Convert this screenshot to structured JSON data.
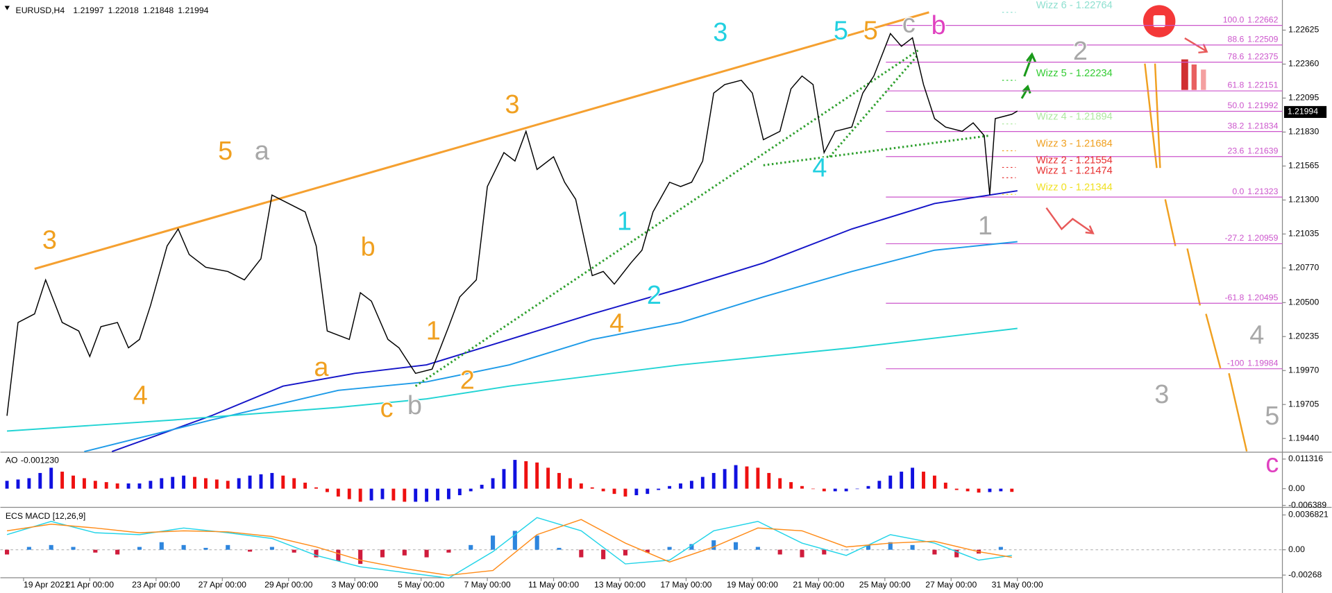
{
  "chart_data": [
    {
      "type": "line",
      "title": "EURUSD,H4",
      "quote": [
        1.21997,
        1.22018,
        1.21848,
        1.21994
      ],
      "color": "#000000",
      "x": [
        0,
        2,
        5,
        7,
        10,
        13,
        15,
        17,
        20,
        22,
        24,
        26,
        29,
        31,
        33,
        36,
        40,
        43,
        46,
        48,
        51,
        54,
        56,
        58,
        60,
        62,
        64,
        66,
        69,
        71,
        74,
        77,
        80,
        82,
        85,
        87,
        90,
        92,
        94,
        96,
        99,
        101,
        103,
        106,
        108,
        110,
        113,
        115,
        117,
        120,
        122,
        124,
        126,
        128,
        130,
        133,
        135,
        137,
        140,
        142,
        144,
        146,
        148,
        150,
        153,
        155,
        157,
        160,
        162,
        164,
        166,
        168,
        170,
        173,
        175,
        177,
        178,
        179,
        182,
        183
      ],
      "values": [
        1.19617,
        1.20345,
        1.20412,
        1.20677,
        1.20345,
        1.20279,
        1.2008,
        1.20312,
        1.20345,
        1.20147,
        1.20213,
        1.20478,
        1.20942,
        1.21074,
        1.20875,
        1.20776,
        1.20743,
        1.20677,
        1.20842,
        1.21339,
        1.21273,
        1.21207,
        1.20942,
        1.20279,
        1.20246,
        1.20213,
        1.20577,
        1.20511,
        1.20213,
        1.20147,
        1.19948,
        1.19981,
        1.20312,
        1.20544,
        1.20677,
        1.21405,
        1.2167,
        1.21604,
        1.21836,
        1.21538,
        1.21637,
        1.21439,
        1.21306,
        1.2071,
        1.20743,
        1.20644,
        1.20809,
        1.20909,
        1.21207,
        1.21439,
        1.21405,
        1.21439,
        1.21604,
        1.22134,
        1.222,
        1.22234,
        1.22134,
        1.2177,
        1.21836,
        1.22167,
        1.22267,
        1.222,
        1.2167,
        1.21836,
        1.21869,
        1.22134,
        1.22267,
        1.22598,
        1.22499,
        1.22565,
        1.222,
        1.21935,
        1.21869,
        1.21836,
        1.21902,
        1.21803,
        1.21339,
        1.21935,
        1.21969,
        1.21994
      ],
      "moving_averages": [
        {
          "color": "#1515c8",
          "x": [
            19,
            37,
            50,
            63,
            76,
            91,
            106,
            122,
            137,
            153,
            168,
            183
          ],
          "values": [
            1.19338,
            1.19617,
            1.19849,
            1.19948,
            1.20014,
            1.20213,
            1.20412,
            1.2061,
            1.20809,
            1.21074,
            1.21273,
            1.21372
          ]
        },
        {
          "color": "#1e9be8",
          "x": [
            14,
            37,
            60,
            76,
            91,
            106,
            122,
            137,
            153,
            168,
            183
          ],
          "values": [
            1.19338,
            1.19584,
            1.19816,
            1.19882,
            1.20014,
            1.20213,
            1.20345,
            1.20544,
            1.20743,
            1.20909,
            1.20975
          ]
        },
        {
          "color": "#22d4d4",
          "x": [
            0,
            30,
            60,
            76,
            91,
            122,
            153,
            183
          ],
          "values": [
            1.19498,
            1.19584,
            1.19683,
            1.19749,
            1.19849,
            1.20014,
            1.20147,
            1.20299
          ]
        }
      ],
      "trendline": {
        "color": "#f5a030",
        "x": [
          5,
          167
        ],
        "values": [
          1.20763,
          1.22764
        ]
      },
      "dotted_lines": [
        {
          "color": "#2ea02e",
          "x": [
            74,
            165
          ],
          "values": [
            1.19849,
            1.22466
          ]
        },
        {
          "color": "#2ea02e",
          "x": [
            137,
            178
          ],
          "values": [
            1.21571,
            1.21803
          ]
        },
        {
          "color": "#2ea02e",
          "x": [
            149,
            165
          ],
          "values": [
            1.21637,
            1.22432
          ]
        }
      ],
      "xlim": [
        -1.2,
        231
      ],
      "ylim": [
        1.1934,
        1.2286
      ],
      "yticks": [
        1.22625,
        {
          "value": 1.2236,
          "label": "1.22360"
        },
        1.22095,
        {
          "value": 1.2183,
          "label": "1.21830"
        },
        1.21565,
        {
          "value": 1.213,
          "label": "1.21300"
        },
        1.21035,
        {
          "value": 1.2077,
          "label": "1.20770"
        },
        {
          "value": 1.205,
          "label": "1.20500"
        },
        1.20235,
        {
          "value": 1.1997,
          "label": "1.19970"
        },
        1.19705,
        {
          "value": 1.1944,
          "label": "1.19440"
        }
      ],
      "xticks": [
        {
          "value": 3,
          "label": "19 Apr 2021"
        },
        {
          "value": 15,
          "label": "21 Apr 00:00"
        },
        {
          "value": 27,
          "label": "23 Apr 00:00"
        },
        {
          "value": 39,
          "label": "27 Apr 00:00"
        },
        {
          "value": 51,
          "label": "29 Apr 00:00"
        },
        {
          "value": 63,
          "label": "3 May 00:00"
        },
        {
          "value": 75,
          "label": "5 May 00:00"
        },
        {
          "value": 87,
          "label": "7 May 00:00"
        },
        {
          "value": 99,
          "label": "11 May 00:00"
        },
        {
          "value": 111,
          "label": "13 May 00:00"
        },
        {
          "value": 123,
          "label": "17 May 00:00"
        },
        {
          "value": 135,
          "label": "19 May 00:00"
        },
        {
          "value": 147,
          "label": "21 May 00:00"
        },
        {
          "value": 159,
          "label": "25 May 00:00"
        },
        {
          "value": 171,
          "label": "27 May 00:00"
        },
        {
          "value": 183,
          "label": "31 May 00:00"
        }
      ],
      "fib_levels": [
        {
          "ratio": "100.0",
          "value": 1.22662
        },
        {
          "ratio": "88.6",
          "value": 1.22509
        },
        {
          "ratio": "78.6",
          "value": 1.22375
        },
        {
          "ratio": "61.8",
          "value": 1.22151
        },
        {
          "ratio": "50.0",
          "value": 1.21992
        },
        {
          "ratio": "38.2",
          "value": 1.21834
        },
        {
          "ratio": "23.6",
          "value": 1.21639
        },
        {
          "ratio": "0.0",
          "value": 1.21323
        },
        {
          "ratio": "-27.2",
          "value": 1.20959
        },
        {
          "ratio": "-61.8",
          "value": 1.20495
        },
        {
          "ratio": "-100",
          "value": 1.19984
        }
      ],
      "fib_color": "#cc55cc",
      "wizz_levels": [
        {
          "label": "Wizz 6 - 1.22764",
          "value": 1.22764,
          "color": "#8fe0d0"
        },
        {
          "label": "Wizz 5 - 1.22234",
          "value": 1.22234,
          "color": "#33cc33"
        },
        {
          "label": "Wizz 4 - 1.21894",
          "value": 1.21894,
          "color": "#aee8a0"
        },
        {
          "label": "Wizz 3 - 1.21684",
          "value": 1.21684,
          "color": "#f0a020"
        },
        {
          "label": "Wizz 2 - 1.21554",
          "value": 1.21554,
          "color": "#e83030"
        },
        {
          "label": "Wizz 1 - 1.21474",
          "value": 1.21474,
          "color": "#e83030"
        },
        {
          "label": "Wizz 0 - 1.21344",
          "value": 1.21344,
          "color": "#f0e020"
        }
      ],
      "wave_labels": [
        {
          "text": "3",
          "color": "#f0a020"
        },
        {
          "text": "4",
          "color": "#f0a020"
        },
        {
          "text": "5",
          "color": "#f0a020"
        },
        {
          "text": "a",
          "color": "#a8a8a8"
        },
        {
          "text": "a",
          "color": "#f0a020"
        },
        {
          "text": "b",
          "color": "#f0a020"
        },
        {
          "text": "1",
          "color": "#f0a020"
        },
        {
          "text": "2",
          "color": "#f0a020"
        },
        {
          "text": "c",
          "color": "#f0a020"
        },
        {
          "text": "b",
          "color": "#a8a8a8"
        },
        {
          "text": "3",
          "color": "#f0a020"
        },
        {
          "text": "4",
          "color": "#f0a020"
        },
        {
          "text": "1",
          "color": "#22d0e0"
        },
        {
          "text": "2",
          "color": "#22d0e0"
        },
        {
          "text": "3",
          "color": "#22d0e0"
        },
        {
          "text": "5",
          "color": "#22d0e0"
        },
        {
          "text": "5",
          "color": "#f0a020"
        },
        {
          "text": "c",
          "color": "#a8a8a8"
        },
        {
          "text": "b",
          "color": "#e040c0"
        },
        {
          "text": "4",
          "color": "#22d0e0"
        },
        {
          "text": "1",
          "color": "#a8a8a8"
        },
        {
          "text": "2",
          "color": "#a8a8a8"
        },
        {
          "text": "4",
          "color": "#a8a8a8"
        },
        {
          "text": "3",
          "color": "#a8a8a8"
        },
        {
          "text": "5",
          "color": "#a8a8a8"
        },
        {
          "text": "c",
          "color": "#e040c0"
        }
      ]
    },
    {
      "type": "bar",
      "title": "AO",
      "current": -0.00123,
      "current_label": "-0.001230",
      "colors": {
        "up": "#1010e0",
        "down": "#ee1010"
      },
      "x": [
        0,
        2,
        4,
        6,
        8,
        10,
        12,
        14,
        16,
        18,
        20,
        22,
        24,
        26,
        28,
        30,
        32,
        34,
        36,
        38,
        40,
        42,
        44,
        46,
        48,
        50,
        52,
        54,
        56,
        58,
        60,
        62,
        64,
        66,
        68,
        70,
        72,
        74,
        76,
        78,
        80,
        82,
        84,
        86,
        88,
        90,
        92,
        94,
        96,
        98,
        100,
        102,
        104,
        106,
        108,
        110,
        112,
        114,
        116,
        118,
        120,
        122,
        124,
        126,
        128,
        130,
        132,
        134,
        136,
        138,
        140,
        142,
        144,
        146,
        148,
        150,
        152,
        154,
        156,
        158,
        160,
        162,
        164,
        166,
        168,
        170,
        172,
        174,
        176,
        178,
        180,
        182
      ],
      "values": [
        0.003,
        0.0035,
        0.004,
        0.006,
        0.008,
        0.0065,
        0.005,
        0.004,
        0.003,
        0.0025,
        0.002,
        0.002,
        0.002,
        0.003,
        0.004,
        0.0045,
        0.005,
        0.0045,
        0.004,
        0.0035,
        0.003,
        0.004,
        0.005,
        0.0055,
        0.006,
        0.005,
        0.004,
        0.0023,
        0.0005,
        -0.0013,
        -0.003,
        -0.004,
        -0.005,
        -0.0045,
        -0.004,
        -0.0045,
        -0.005,
        -0.005,
        -0.005,
        -0.0045,
        -0.004,
        -0.0025,
        -0.001,
        0.0015,
        0.004,
        0.0075,
        0.011,
        0.0105,
        0.01,
        0.008,
        0.006,
        0.004,
        0.002,
        0.0005,
        -0.001,
        -0.002,
        -0.003,
        -0.0025,
        -0.002,
        -0.0005,
        0.001,
        0.002,
        0.003,
        0.0045,
        0.006,
        0.0075,
        0.009,
        0.0085,
        0.008,
        0.006,
        0.004,
        0.0025,
        0.001,
        0,
        -0.001,
        -0.001,
        -0.001,
        0,
        0.001,
        0.003,
        0.005,
        0.0065,
        0.008,
        0.0065,
        0.005,
        0.0023,
        -0.0005,
        -0.001,
        -0.0015,
        -0.0013,
        -0.001,
        -0.00123
      ],
      "ylim": [
        -0.0068,
        0.0133
      ],
      "yticks": [
        0.011316,
        {
          "value": 0,
          "label": "0.00"
        },
        -0.006389
      ]
    },
    {
      "type": "macd",
      "title": "ECS MACD [12,26,9]",
      "histogram": {
        "colors": {
          "positive": "#2e86de",
          "negative": "#d01c3c"
        },
        "x": [
          0,
          4,
          8,
          12,
          16,
          20,
          24,
          28,
          32,
          36,
          40,
          44,
          48,
          52,
          56,
          60,
          64,
          68,
          72,
          76,
          80,
          84,
          88,
          92,
          96,
          100,
          104,
          108,
          112,
          116,
          120,
          124,
          128,
          132,
          136,
          140,
          144,
          148,
          152,
          156,
          160,
          164,
          168,
          172,
          176,
          180
        ],
        "values": [
          -0.0005,
          0.0003,
          0.0005,
          0.0003,
          -0.0003,
          -0.0005,
          0.0003,
          0.0008,
          0.0005,
          0.0002,
          0.0005,
          -0.0002,
          0.0003,
          -0.0003,
          -0.0008,
          -0.0012,
          -0.0015,
          -0.0008,
          -0.0006,
          -0.0008,
          -0.0003,
          0.0005,
          0.0015,
          0.002,
          0.0015,
          0.0002,
          -0.0008,
          -0.001,
          -0.0006,
          -0.0003,
          0.0003,
          0.0006,
          0.001,
          0.0008,
          0.0003,
          -0.0005,
          -0.0008,
          -0.0005,
          0,
          0.0005,
          0.0008,
          0.0005,
          -0.0005,
          -0.0008,
          -0.0004,
          0.0003
        ]
      },
      "series": [
        {
          "color": "#22d4e8",
          "x": [
            0,
            8,
            16,
            24,
            32,
            40,
            48,
            56,
            64,
            72,
            80,
            88,
            96,
            104,
            112,
            120,
            128,
            136,
            144,
            152,
            160,
            168,
            176,
            182
          ],
          "values": [
            0.0016,
            0.003,
            0.0018,
            0.0016,
            0.0023,
            0.0018,
            0.0012,
            -0.0006,
            -0.0018,
            -0.0024,
            -0.003,
            -0.0002,
            0.0034,
            0.002,
            -0.0015,
            -0.0011,
            0.002,
            0.003,
            0.0007,
            -0.0006,
            0.0016,
            0.0007,
            -0.0011,
            -0.0006
          ]
        },
        {
          "color": "#ff8c1a",
          "x": [
            0,
            8,
            16,
            24,
            32,
            40,
            48,
            56,
            64,
            72,
            80,
            88,
            96,
            104,
            112,
            120,
            128,
            136,
            144,
            152,
            160,
            168,
            176,
            182
          ],
          "values": [
            0.002,
            0.0027,
            0.0023,
            0.0018,
            0.002,
            0.0019,
            0.0014,
            0.0003,
            -0.0011,
            -0.002,
            -0.0027,
            -0.0022,
            0.0016,
            0.0032,
            0.0007,
            -0.0013,
            0.0003,
            0.0023,
            0.002,
            0.0003,
            0.0007,
            0.0009,
            -0.0002,
            -0.0008
          ]
        }
      ],
      "ylim": [
        -0.00287,
        0.00431
      ],
      "yticks": [
        0.0036821,
        {
          "value": 0,
          "label": "0.00"
        },
        -0.00268
      ]
    }
  ]
}
